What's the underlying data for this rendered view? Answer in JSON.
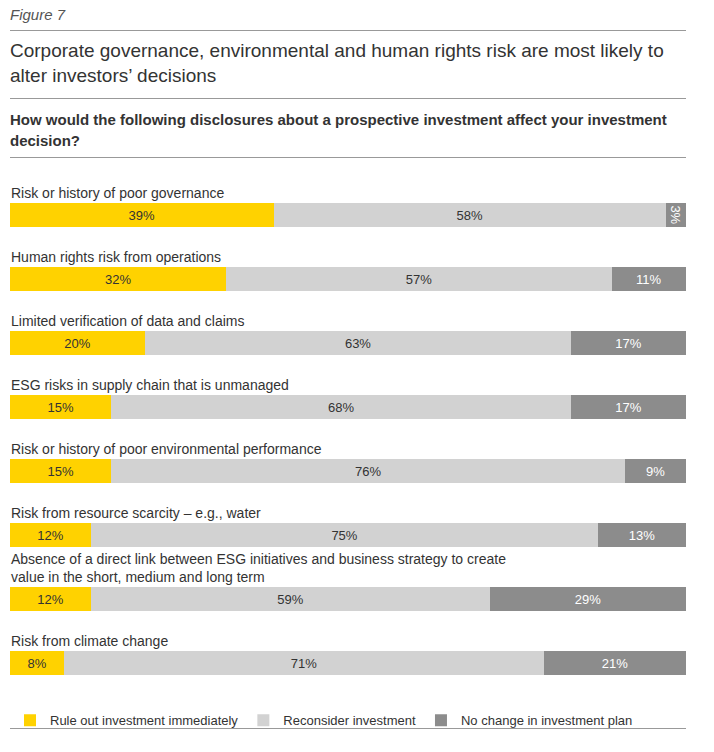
{
  "chart_data": {
    "type": "bar",
    "label": "Figure 7",
    "title": "Corporate governance, environmental and human rights risk are most likely to alter investors’ decisions",
    "subtitle": "How would the following disclosures about a prospective investment affect your investment decision?",
    "orientation": "horizontal",
    "stacked": true,
    "data_labels": true,
    "tick_labels": false,
    "grid": false,
    "legend": "bottom",
    "xlim": [
      0,
      100
    ],
    "categories": [
      "Risk or history of poor governance",
      "Human rights risk from operations",
      "Limited verification of data and claims",
      "ESG risks in supply chain that is unmanaged",
      "Risk or history of poor environmental performance",
      "Risk from resource scarcity – e.g., water",
      "Absence of a direct link between ESG initiatives and business strategy to create value in the short, medium and long term",
      "Risk from climate change"
    ],
    "series": [
      {
        "name": "Rule out investment immediately",
        "color": "#FFD200",
        "values": [
          39,
          32,
          20,
          15,
          15,
          12,
          12,
          8
        ],
        "value_labels": [
          "39%",
          "32%",
          "20%",
          "15%",
          "15%",
          "12%",
          "12%",
          "8%"
        ]
      },
      {
        "name": "Reconsider investment",
        "color": "#D2D2D2",
        "values": [
          58,
          57,
          63,
          68,
          76,
          75,
          59,
          71
        ],
        "value_labels": [
          "58%",
          "57%",
          "63%",
          "68%",
          "76%",
          "75%",
          "59%",
          "71%"
        ]
      },
      {
        "name": "No change in investment plan",
        "color": "#8C8C8C",
        "values": [
          3,
          11,
          17,
          17,
          9,
          13,
          29,
          21
        ],
        "value_labels": [
          "3%",
          "11%",
          "17%",
          "17%",
          "9%",
          "13%",
          "29%",
          "21%"
        ]
      }
    ]
  }
}
